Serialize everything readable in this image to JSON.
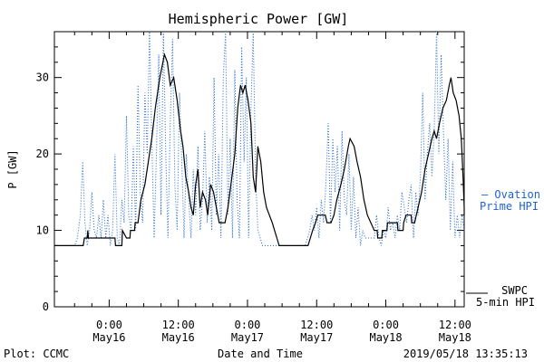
{
  "chart_data": {
    "type": "line",
    "title": "Hemispheric Power [GW]",
    "xlabel": "Date and Time",
    "ylabel": "P [GW]",
    "ylim": [
      0,
      36
    ],
    "xlim_hours": [
      -9.5,
      61.6
    ],
    "grid": false,
    "legend_placement": "right outside",
    "yticks": [
      0,
      10,
      20,
      30
    ],
    "xticks": [
      {
        "hour": 0,
        "time": "0:00",
        "date": "May16"
      },
      {
        "hour": 12,
        "time": "12:00",
        "date": "May16"
      },
      {
        "hour": 24,
        "time": "0:00",
        "date": "May17"
      },
      {
        "hour": 36,
        "time": "12:00",
        "date": "May17"
      },
      {
        "hour": 48,
        "time": "0:00",
        "date": "May18"
      },
      {
        "hour": 60,
        "time": "12:00",
        "date": "May18"
      }
    ],
    "series": [
      {
        "name": "SWPC 5-min HPI",
        "color": "#000000",
        "style": "solid-step",
        "points": [
          [
            -9.5,
            8
          ],
          [
            -4.5,
            8
          ],
          [
            -4.3,
            9
          ],
          [
            -3.8,
            9
          ],
          [
            -3.7,
            10
          ],
          [
            -3.6,
            9
          ],
          [
            1,
            9
          ],
          [
            1.1,
            8
          ],
          [
            2.2,
            8
          ],
          [
            2.3,
            10
          ],
          [
            3,
            9
          ],
          [
            3.6,
            9
          ],
          [
            3.7,
            10
          ],
          [
            4.4,
            10
          ],
          [
            4.5,
            11
          ],
          [
            5,
            11
          ],
          [
            5.5,
            14
          ],
          [
            6.2,
            16
          ],
          [
            6.8,
            19
          ],
          [
            7.4,
            22
          ],
          [
            8,
            26
          ],
          [
            8.8,
            30
          ],
          [
            9.6,
            33
          ],
          [
            10.1,
            32
          ],
          [
            10.6,
            29
          ],
          [
            11.2,
            30
          ],
          [
            11.8,
            27
          ],
          [
            12.4,
            23
          ],
          [
            12.8,
            21
          ],
          [
            13.3,
            17
          ],
          [
            13.8,
            15
          ],
          [
            14.2,
            13
          ],
          [
            14.6,
            12
          ],
          [
            15,
            16
          ],
          [
            15.4,
            18
          ],
          [
            15.8,
            13
          ],
          [
            16.2,
            15
          ],
          [
            16.7,
            14
          ],
          [
            17.1,
            12
          ],
          [
            17.6,
            16
          ],
          [
            18.1,
            15
          ],
          [
            18.6,
            13
          ],
          [
            19.1,
            11
          ],
          [
            20.1,
            11
          ],
          [
            20.6,
            13
          ],
          [
            21.3,
            17
          ],
          [
            21.8,
            20
          ],
          [
            22.3,
            26
          ],
          [
            22.8,
            29
          ],
          [
            23.2,
            28
          ],
          [
            23.6,
            29
          ],
          [
            24.1,
            27
          ],
          [
            24.6,
            24
          ],
          [
            25,
            17
          ],
          [
            25.4,
            15
          ],
          [
            25.8,
            21
          ],
          [
            26.3,
            19
          ],
          [
            26.8,
            15
          ],
          [
            27.3,
            13
          ],
          [
            27.8,
            12
          ],
          [
            28.3,
            11
          ],
          [
            28.7,
            10
          ],
          [
            29.1,
            9
          ],
          [
            29.5,
            8
          ],
          [
            34.5,
            8
          ],
          [
            34.9,
            9
          ],
          [
            35.3,
            10
          ],
          [
            35.8,
            11
          ],
          [
            36.2,
            12
          ],
          [
            37.5,
            12
          ],
          [
            37.8,
            11
          ],
          [
            38.5,
            11
          ],
          [
            39,
            12
          ],
          [
            39.5,
            14
          ],
          [
            40.2,
            16
          ],
          [
            40.8,
            18
          ],
          [
            41.5,
            21
          ],
          [
            41.8,
            22
          ],
          [
            42.5,
            21
          ],
          [
            43,
            19
          ],
          [
            43.6,
            17
          ],
          [
            44.2,
            14
          ],
          [
            44.8,
            12
          ],
          [
            45.4,
            11
          ],
          [
            46,
            10
          ],
          [
            46.5,
            10
          ],
          [
            46.6,
            9
          ],
          [
            47.3,
            9
          ],
          [
            47.4,
            10
          ],
          [
            48.2,
            10
          ],
          [
            48.3,
            11
          ],
          [
            50,
            11
          ],
          [
            50.1,
            10
          ],
          [
            51,
            10
          ],
          [
            51.1,
            11
          ],
          [
            51.5,
            12
          ],
          [
            52.4,
            12
          ],
          [
            52.5,
            11
          ],
          [
            53,
            11
          ],
          [
            53.6,
            13
          ],
          [
            54.2,
            15
          ],
          [
            54.8,
            18
          ],
          [
            55.4,
            20
          ],
          [
            56,
            22
          ],
          [
            56.4,
            23
          ],
          [
            56.8,
            22
          ],
          [
            57.3,
            24
          ],
          [
            57.9,
            26
          ],
          [
            58.5,
            27
          ],
          [
            59,
            29
          ],
          [
            59.3,
            30
          ],
          [
            59.7,
            28
          ],
          [
            60.2,
            27
          ],
          [
            60.7,
            25
          ],
          [
            61.1,
            22
          ],
          [
            61.4,
            17
          ],
          [
            61.6,
            13
          ],
          [
            61.6,
            12
          ]
        ]
      },
      {
        "name": "Ovation Prime HPI",
        "color": "#1e64c8",
        "style": "dotted",
        "points": [
          [
            -9.5,
            8
          ],
          [
            -6,
            8
          ],
          [
            -5.5,
            9
          ],
          [
            -5,
            12
          ],
          [
            -4.6,
            19
          ],
          [
            -4.2,
            11
          ],
          [
            -3.8,
            8
          ],
          [
            -3.4,
            10
          ],
          [
            -3,
            15
          ],
          [
            -2.6,
            10
          ],
          [
            -2.2,
            9
          ],
          [
            -1.8,
            12
          ],
          [
            -1.4,
            9
          ],
          [
            -1,
            14
          ],
          [
            -0.6,
            9
          ],
          [
            -0.2,
            12
          ],
          [
            0.2,
            8
          ],
          [
            0.6,
            10
          ],
          [
            1,
            20
          ],
          [
            1.4,
            9
          ],
          [
            1.8,
            8
          ],
          [
            2.2,
            14
          ],
          [
            2.6,
            11
          ],
          [
            3,
            25
          ],
          [
            3.4,
            12
          ],
          [
            3.8,
            10
          ],
          [
            4.2,
            21
          ],
          [
            4.6,
            10
          ],
          [
            5,
            29
          ],
          [
            5.4,
            15
          ],
          [
            5.8,
            11
          ],
          [
            6.2,
            28
          ],
          [
            6.6,
            20
          ],
          [
            7,
            36
          ],
          [
            7.4,
            22
          ],
          [
            7.8,
            9
          ],
          [
            8.2,
            20
          ],
          [
            8.6,
            33
          ],
          [
            9,
            12
          ],
          [
            9.4,
            36
          ],
          [
            9.8,
            21
          ],
          [
            10.2,
            9
          ],
          [
            10.6,
            24
          ],
          [
            11,
            35
          ],
          [
            11.4,
            16
          ],
          [
            11.8,
            10
          ],
          [
            12.2,
            28
          ],
          [
            12.6,
            19
          ],
          [
            13,
            9
          ],
          [
            13.4,
            20
          ],
          [
            13.8,
            14
          ],
          [
            14.2,
            9
          ],
          [
            14.6,
            18
          ],
          [
            15,
            12
          ],
          [
            15.4,
            21
          ],
          [
            15.8,
            10
          ],
          [
            16.2,
            14
          ],
          [
            16.6,
            23
          ],
          [
            17,
            11
          ],
          [
            17.4,
            17
          ],
          [
            17.8,
            10
          ],
          [
            18.2,
            30
          ],
          [
            18.6,
            12
          ],
          [
            19,
            20
          ],
          [
            19.4,
            9
          ],
          [
            19.8,
            30
          ],
          [
            20.2,
            36
          ],
          [
            20.6,
            12
          ],
          [
            21,
            22
          ],
          [
            21.4,
            9
          ],
          [
            21.8,
            31
          ],
          [
            22.2,
            14
          ],
          [
            22.6,
            9
          ],
          [
            23,
            34
          ],
          [
            23.4,
            19
          ],
          [
            23.8,
            30
          ],
          [
            24.2,
            9
          ],
          [
            24.6,
            26
          ],
          [
            25,
            36
          ],
          [
            25.4,
            17
          ],
          [
            25.8,
            10
          ],
          [
            26.2,
            9
          ],
          [
            26.6,
            8
          ],
          [
            34,
            8
          ],
          [
            34.4,
            9
          ],
          [
            34.8,
            10
          ],
          [
            35.2,
            12
          ],
          [
            35.6,
            10
          ],
          [
            36,
            13
          ],
          [
            36.4,
            9
          ],
          [
            36.8,
            14
          ],
          [
            37.2,
            11
          ],
          [
            37.6,
            16
          ],
          [
            38,
            24
          ],
          [
            38.4,
            11
          ],
          [
            38.8,
            22
          ],
          [
            39.2,
            15
          ],
          [
            39.6,
            21
          ],
          [
            40,
            10
          ],
          [
            40.4,
            23
          ],
          [
            40.8,
            14
          ],
          [
            41.2,
            12
          ],
          [
            41.6,
            20
          ],
          [
            42,
            10
          ],
          [
            42.4,
            17
          ],
          [
            42.8,
            9
          ],
          [
            43.2,
            13
          ],
          [
            43.6,
            8
          ],
          [
            44,
            10
          ],
          [
            44.4,
            9
          ],
          [
            46,
            9
          ],
          [
            46.4,
            12
          ],
          [
            46.8,
            9
          ],
          [
            47.2,
            8
          ],
          [
            47.6,
            10
          ],
          [
            48,
            9
          ],
          [
            48.4,
            13
          ],
          [
            48.8,
            10
          ],
          [
            49.2,
            11
          ],
          [
            49.6,
            9
          ],
          [
            50,
            12
          ],
          [
            50.4,
            10
          ],
          [
            50.8,
            15
          ],
          [
            51.2,
            13
          ],
          [
            51.6,
            11
          ],
          [
            52,
            14
          ],
          [
            52.4,
            16
          ],
          [
            52.8,
            9
          ],
          [
            53.2,
            15
          ],
          [
            53.6,
            12
          ],
          [
            54,
            17
          ],
          [
            54.4,
            28
          ],
          [
            54.8,
            14
          ],
          [
            55.2,
            20
          ],
          [
            55.6,
            24
          ],
          [
            56,
            17
          ],
          [
            56.4,
            23
          ],
          [
            56.8,
            36
          ],
          [
            57.2,
            20
          ],
          [
            57.6,
            33
          ],
          [
            58,
            23
          ],
          [
            58.4,
            14
          ],
          [
            58.8,
            22
          ],
          [
            59.2,
            10
          ],
          [
            59.6,
            19
          ],
          [
            60,
            9
          ],
          [
            60.4,
            12
          ],
          [
            60.8,
            9
          ],
          [
            61.2,
            12
          ],
          [
            61.6,
            10
          ]
        ]
      }
    ],
    "legend": {
      "model_line1": "Ovation",
      "model_line2": "Prime HPI",
      "obs_line1": "SWPC",
      "obs_line2": "5-min HPI",
      "model_marker": "—"
    },
    "footer": {
      "left": "Plot: CCMC",
      "center": "Date and Time",
      "right": "2019/05/18 13:35:13"
    }
  }
}
